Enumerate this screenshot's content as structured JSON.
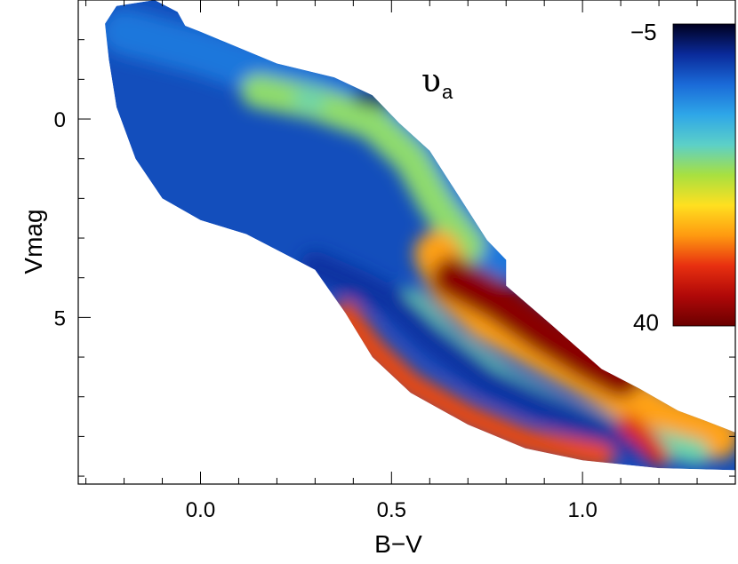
{
  "chart_data": {
    "type": "heatmap",
    "xlabel": "B−V",
    "ylabel": "Vmag",
    "xlim": [
      -0.32,
      1.4
    ],
    "ylim": [
      9.2,
      -3.0
    ],
    "y_inverted": true,
    "x_ticks": [
      {
        "value": 0.0,
        "label": "0.0"
      },
      {
        "value": 0.5,
        "label": "0.5"
      },
      {
        "value": 1.0,
        "label": "1.0"
      }
    ],
    "y_ticks": [
      {
        "value": 0,
        "label": "0"
      },
      {
        "value": 5,
        "label": "5"
      }
    ],
    "x_minor_step": 0.1,
    "y_minor_step": 1,
    "annotation": {
      "symbol": "υ",
      "subscript": "a",
      "x": 0.6,
      "y": -1.5
    },
    "colorbar": {
      "min_label": "−5",
      "max_label": "40",
      "min": -5,
      "max": 40,
      "colors": [
        "#000020",
        "#0a2a9a",
        "#1a6ad8",
        "#2ea6e8",
        "#5cd0c8",
        "#a8e040",
        "#ffe020",
        "#ff9a10",
        "#e83010",
        "#b00808",
        "#6a0000"
      ]
    },
    "region_outline": [
      [
        -0.22,
        -2.85
      ],
      [
        -0.12,
        -3.0
      ],
      [
        -0.06,
        -2.7
      ],
      [
        -0.04,
        -2.35
      ],
      [
        0.0,
        -2.2
      ],
      [
        0.05,
        -2.0
      ],
      [
        0.2,
        -1.4
      ],
      [
        0.35,
        -1.05
      ],
      [
        0.45,
        -0.6
      ],
      [
        0.52,
        0.1
      ],
      [
        0.6,
        0.8
      ],
      [
        0.68,
        2.0
      ],
      [
        0.75,
        3.05
      ],
      [
        0.8,
        3.55
      ],
      [
        0.8,
        4.2
      ],
      [
        0.92,
        5.2
      ],
      [
        1.05,
        6.3
      ],
      [
        1.15,
        6.8
      ],
      [
        1.25,
        7.35
      ],
      [
        1.32,
        7.6
      ],
      [
        1.4,
        7.9
      ],
      [
        1.4,
        8.85
      ],
      [
        1.2,
        8.8
      ],
      [
        1.0,
        8.6
      ],
      [
        0.85,
        8.3
      ],
      [
        0.7,
        7.7
      ],
      [
        0.55,
        6.9
      ],
      [
        0.45,
        6.0
      ],
      [
        0.38,
        4.9
      ],
      [
        0.3,
        3.8
      ],
      [
        0.12,
        2.9
      ],
      [
        0.0,
        2.55
      ],
      [
        -0.1,
        2.0
      ],
      [
        -0.17,
        1.0
      ],
      [
        -0.22,
        -0.3
      ],
      [
        -0.24,
        -1.5
      ],
      [
        -0.25,
        -2.4
      ]
    ],
    "bands": [
      {
        "value": 5,
        "points": [
          [
            -0.2,
            -2.2
          ],
          [
            0.0,
            -1.7
          ],
          [
            0.25,
            -0.9
          ],
          [
            0.45,
            -0.2
          ],
          [
            0.55,
            0.6
          ],
          [
            0.62,
            1.7
          ],
          [
            0.7,
            2.8
          ],
          [
            0.78,
            3.5
          ]
        ],
        "width": 0.55
      },
      {
        "value": 16,
        "points": [
          [
            0.15,
            -0.7
          ],
          [
            0.3,
            -0.4
          ],
          [
            0.45,
            0.1
          ],
          [
            0.55,
            1.0
          ],
          [
            0.62,
            2.2
          ],
          [
            0.7,
            3.2
          ]
        ],
        "width": 0.4
      },
      {
        "value": 26,
        "points": [
          [
            0.62,
            3.4
          ],
          [
            0.66,
            4.2
          ],
          [
            0.75,
            5.0
          ],
          [
            0.9,
            5.8
          ],
          [
            1.05,
            6.6
          ],
          [
            1.2,
            7.5
          ],
          [
            1.35,
            8.0
          ]
        ],
        "width": 0.55
      },
      {
        "value": 38,
        "points": [
          [
            0.66,
            4.0
          ],
          [
            0.78,
            4.6
          ],
          [
            0.9,
            5.4
          ],
          [
            1.02,
            6.1
          ],
          [
            1.1,
            6.5
          ]
        ],
        "width": 0.5
      },
      {
        "value": 14,
        "points": [
          [
            0.55,
            4.6
          ],
          [
            0.65,
            5.6
          ],
          [
            0.8,
            6.6
          ],
          [
            0.95,
            7.4
          ],
          [
            1.1,
            7.9
          ],
          [
            1.3,
            8.4
          ]
        ],
        "width": 0.3
      },
      {
        "value": 0,
        "points": [
          [
            0.3,
            3.7
          ],
          [
            0.42,
            4.2
          ],
          [
            0.5,
            4.6
          ],
          [
            0.6,
            5.5
          ],
          [
            0.75,
            6.6
          ],
          [
            0.95,
            7.5
          ],
          [
            1.15,
            8.2
          ]
        ],
        "width": 0.35
      },
      {
        "value": 30,
        "points": [
          [
            0.38,
            4.9
          ],
          [
            0.45,
            5.8
          ],
          [
            0.55,
            6.7
          ],
          [
            0.7,
            7.5
          ],
          [
            0.85,
            8.1
          ],
          [
            1.05,
            8.5
          ]
        ],
        "width": 0.3
      },
      {
        "value": 32,
        "points": [
          [
            1.12,
            7.7
          ],
          [
            1.17,
            8.1
          ],
          [
            1.2,
            8.5
          ]
        ],
        "width": 0.25
      },
      {
        "value": 14,
        "points": [
          [
            0.27,
            -0.5
          ],
          [
            0.3,
            -0.45
          ]
        ],
        "width": 0.25
      },
      {
        "value": -3,
        "points": [
          [
            0.42,
            -0.55
          ],
          [
            0.48,
            -0.45
          ]
        ],
        "width": 0.18
      }
    ]
  }
}
